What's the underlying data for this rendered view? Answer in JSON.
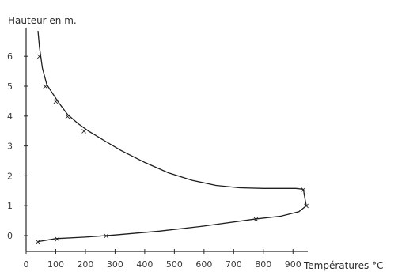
{
  "chart_data": {
    "type": "line",
    "ylabel": "Hauteur en m.",
    "xlabel": "Températures °C",
    "xlim": [
      0,
      950
    ],
    "ylim": [
      -0.3,
      6.9
    ],
    "x_ticks": [
      0,
      100,
      200,
      300,
      400,
      500,
      600,
      700,
      800,
      900
    ],
    "x_tick_labels": [
      "0",
      "100",
      "200",
      "300",
      "400",
      "500",
      "600",
      "700",
      "800",
      "900"
    ],
    "y_ticks": [
      0,
      1,
      2,
      3,
      4,
      5,
      6
    ],
    "y_tick_labels": [
      "0",
      "1",
      "2",
      "3",
      "4",
      "5",
      "6"
    ],
    "series": [
      {
        "curve": [
          [
            40,
            6.85
          ],
          [
            45,
            6.3
          ],
          [
            55,
            5.6
          ],
          [
            70,
            5.05
          ],
          [
            90,
            4.75
          ],
          [
            110,
            4.45
          ],
          [
            140,
            4.05
          ],
          [
            175,
            3.75
          ],
          [
            210,
            3.5
          ],
          [
            260,
            3.2
          ],
          [
            320,
            2.85
          ],
          [
            400,
            2.45
          ],
          [
            480,
            2.1
          ],
          [
            560,
            1.85
          ],
          [
            640,
            1.68
          ],
          [
            720,
            1.6
          ],
          [
            800,
            1.58
          ],
          [
            870,
            1.58
          ],
          [
            910,
            1.58
          ],
          [
            935,
            1.55
          ]
        ],
        "markers": [
          [
            45,
            6.0
          ],
          [
            65,
            5.0
          ],
          [
            100,
            4.5
          ],
          [
            140,
            4.0
          ],
          [
            195,
            3.5
          ],
          [
            935,
            1.55
          ]
        ]
      },
      {
        "curve": [
          [
            935,
            1.55
          ],
          [
            940,
            1.25
          ],
          [
            945,
            1.0
          ],
          [
            920,
            0.8
          ],
          [
            860,
            0.65
          ],
          [
            770,
            0.55
          ],
          [
            600,
            0.32
          ],
          [
            450,
            0.15
          ],
          [
            300,
            0.02
          ],
          [
            200,
            -0.05
          ],
          [
            100,
            -0.1
          ],
          [
            40,
            -0.2
          ]
        ],
        "markers": [
          [
            945,
            1.0
          ],
          [
            775,
            0.55
          ],
          [
            270,
            0.0
          ],
          [
            105,
            -0.1
          ],
          [
            40,
            -0.2
          ]
        ]
      }
    ]
  }
}
